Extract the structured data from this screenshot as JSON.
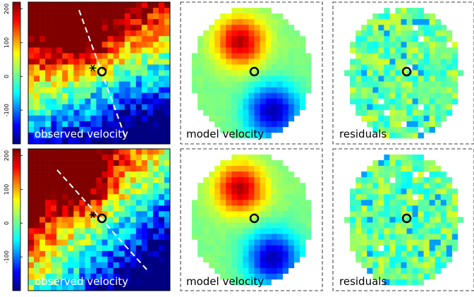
{
  "colorbar": {
    "ticks": [
      "200",
      "100",
      "0",
      "-100"
    ],
    "values": [
      200,
      100,
      0,
      -100
    ],
    "range": [
      -200,
      220
    ]
  },
  "rows": [
    {
      "panels": [
        {
          "label": "observed velocity",
          "kind": "observed",
          "seed": 11,
          "axis_angle_deg": 70,
          "marker": "star"
        },
        {
          "label": "model velocity",
          "kind": "model",
          "seed": 21,
          "axis_angle_deg": 70
        },
        {
          "label": "residuals",
          "kind": "residual",
          "seed": 31
        }
      ]
    },
    {
      "panels": [
        {
          "label": "observed velocity",
          "kind": "observed",
          "seed": 41,
          "axis_angle_deg": 48,
          "marker": "star"
        },
        {
          "label": "model velocity",
          "kind": "model",
          "seed": 51,
          "axis_angle_deg": 48
        },
        {
          "label": "residuals",
          "kind": "residual",
          "seed": 61
        }
      ]
    }
  ],
  "colors": {
    "observed_label": "#ffffff",
    "model_label": "#000000",
    "residual_label": "#000000",
    "slit_line": "#ffffff",
    "circle_marker": "#000000"
  }
}
